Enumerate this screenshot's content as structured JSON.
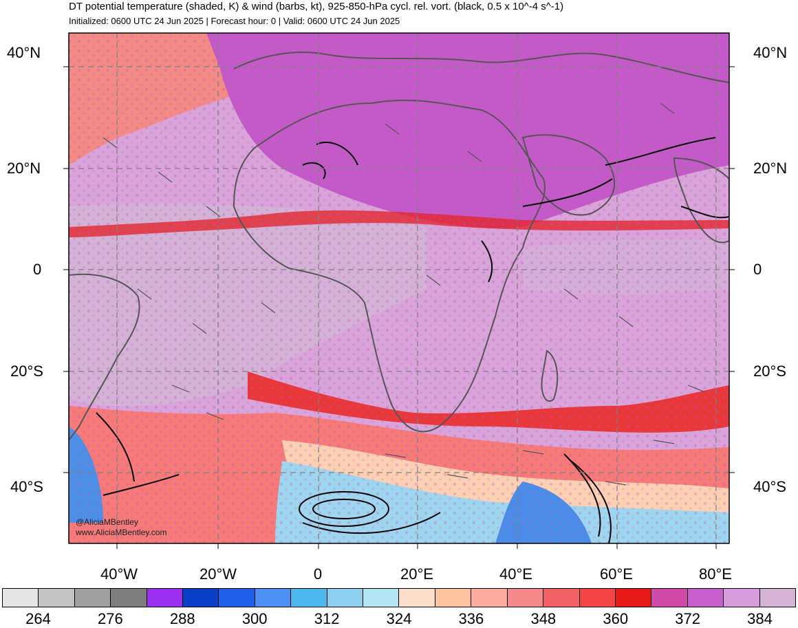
{
  "header": {
    "title": "DT potential temperature (shaded, K) & wind (barbs, kt), 925-850-hPa cycl. rel. vort. (black, 0.5 x 10^-4 s^-1)",
    "subtitle": "Initialized: 0600 UTC 24 Jun 2025 | Forecast hour: 0 | Valid: 0600 UTC 24 Jun 2025"
  },
  "map": {
    "lat_labels_left": [
      "40°N",
      "20°N",
      "0",
      "20°S",
      "40°S"
    ],
    "lat_labels_right": [
      "40°N",
      "20°N",
      "0",
      "20°S",
      "40°S"
    ],
    "lon_labels": [
      "40°W",
      "20°W",
      "0",
      "20°E",
      "40°E",
      "60°E",
      "80°E"
    ],
    "colors": {
      "cool_low": "#ffd9c4",
      "warm_band": "#f2585c",
      "hot_band": "#e31a1c",
      "purple_hi": "#c64dc6",
      "lavender": "#d8a6d8",
      "light_purple": "#ceb0d2",
      "cold_blue": "#8fd0ef",
      "deep_blue": "#3a7ee0",
      "land_outline": "#555555",
      "vort_contour": "#000000",
      "barb": "#555555"
    }
  },
  "credits": {
    "line1": "@AliciaMBentley",
    "line2": "www.AliciaMBentley.com"
  },
  "colorbar": {
    "colors": [
      "#e6e6e6",
      "#c4c4c4",
      "#a0a0a0",
      "#7e7e7e",
      "#9b30f0",
      "#0a3fc8",
      "#2060e8",
      "#4d90f4",
      "#4cb8ee",
      "#8ccfee",
      "#b5e6f5",
      "#fde0cc",
      "#fcc3a1",
      "#fdaaa0",
      "#f6898c",
      "#f36266",
      "#f44444",
      "#e51a18",
      "#d04aa8",
      "#c860d0",
      "#d69cdc",
      "#d6b4d6"
    ],
    "labels": [
      "264",
      "276",
      "288",
      "300",
      "312",
      "324",
      "336",
      "348",
      "360",
      "372",
      "384"
    ]
  }
}
